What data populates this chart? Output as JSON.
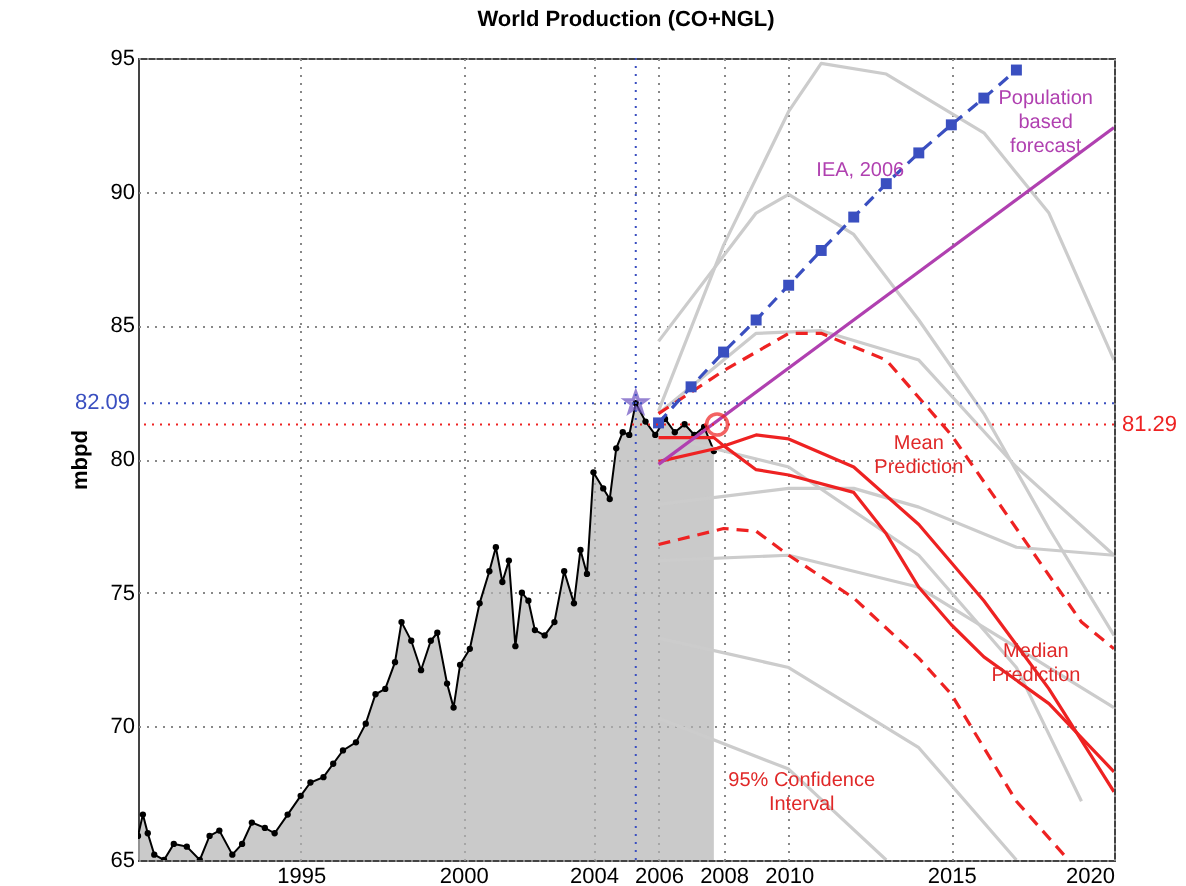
{
  "chart_data": {
    "type": "line",
    "title": "World Production (CO+NGL)",
    "ylabel": "mbpd",
    "xlim": [
      1990,
      2020
    ],
    "xticks": [
      1995,
      2000,
      2004,
      2006,
      2008,
      2010,
      2015,
      2020
    ],
    "ylim": [
      65,
      95
    ],
    "yticks": [
      65,
      70,
      75,
      80,
      85,
      90,
      95
    ],
    "grid": true,
    "series": [
      {
        "type": "area",
        "color": "#b3b3b3",
        "marker": "circle",
        "x": [
          1990.0,
          1990.15,
          1990.3,
          1990.5,
          1990.8,
          1991.1,
          1991.5,
          1991.9,
          1992.2,
          1992.5,
          1992.9,
          1993.2,
          1993.5,
          1993.9,
          1994.2,
          1994.6,
          1995.0,
          1995.3,
          1995.7,
          1996.0,
          1996.3,
          1996.7,
          1997.0,
          1997.3,
          1997.6,
          1997.9,
          1998.1,
          1998.4,
          1998.7,
          1999.0,
          1999.2,
          1999.5,
          1999.7,
          1999.9,
          2000.2,
          2000.5,
          2000.8,
          2001.0,
          2001.2,
          2001.4,
          2001.6,
          2001.8,
          2002.0,
          2002.2,
          2002.5,
          2002.8,
          2003.1,
          2003.4,
          2003.6,
          2003.8,
          2004.0,
          2004.3,
          2004.5,
          2004.7,
          2004.9,
          2005.1,
          2005.3,
          2005.6,
          2005.9,
          2006.2,
          2006.5,
          2006.8,
          2007.1,
          2007.4,
          2007.7
        ],
        "values": [
          65.9,
          66.7,
          66.0,
          65.2,
          65.0,
          65.6,
          65.5,
          65.0,
          65.9,
          66.1,
          65.2,
          65.6,
          66.4,
          66.2,
          66.0,
          66.7,
          67.4,
          67.9,
          68.1,
          68.6,
          69.1,
          69.4,
          70.1,
          71.2,
          71.4,
          72.4,
          73.9,
          73.2,
          72.1,
          73.2,
          73.5,
          71.6,
          70.7,
          72.3,
          72.9,
          74.6,
          75.8,
          76.7,
          75.4,
          76.2,
          73.0,
          75.0,
          74.7,
          73.6,
          73.4,
          73.9,
          75.8,
          74.6,
          76.6,
          75.7,
          79.5,
          78.9,
          78.5,
          80.4,
          81.0,
          80.9,
          82.09,
          81.4,
          80.9,
          81.5,
          81.0,
          81.3,
          80.9,
          81.2,
          80.3
        ]
      },
      {
        "color": "#cccccc",
        "x": [
          2006,
          2008,
          2010,
          2011,
          2013,
          2016,
          2018,
          2020
        ],
        "values": [
          81.8,
          88.0,
          93.0,
          94.8,
          94.4,
          92.2,
          89.2,
          83.7
        ]
      },
      {
        "color": "#cccccc",
        "x": [
          2006,
          2009,
          2010,
          2012,
          2014,
          2016,
          2018,
          2020
        ],
        "values": [
          84.4,
          89.2,
          89.9,
          88.4,
          85.2,
          81.7,
          77.4,
          73.4
        ]
      },
      {
        "color": "#cccccc",
        "x": [
          2006,
          2009,
          2011,
          2014,
          2017,
          2020
        ],
        "values": [
          81.7,
          84.7,
          84.8,
          83.7,
          79.7,
          76.4
        ]
      },
      {
        "color": "#cccccc",
        "x": [
          2006,
          2010,
          2012,
          2014,
          2017,
          2020
        ],
        "values": [
          78.3,
          78.9,
          78.9,
          78.2,
          76.7,
          76.4
        ]
      },
      {
        "color": "#cccccc",
        "x": [
          2006,
          2010,
          2014,
          2018,
          2020
        ],
        "values": [
          76.2,
          76.4,
          75.2,
          72.2,
          70.7
        ]
      },
      {
        "color": "#cccccc",
        "x": [
          2006,
          2010,
          2014,
          2017
        ],
        "values": [
          73.3,
          72.2,
          69.2,
          65.0
        ]
      },
      {
        "color": "#cccccc",
        "x": [
          2006,
          2010,
          2013
        ],
        "values": [
          70.3,
          68.4,
          65.0
        ]
      },
      {
        "color": "#cccccc",
        "x": [
          2006,
          2010,
          2014,
          2017,
          2019
        ],
        "values": [
          80.9,
          79.7,
          76.4,
          72.2,
          67.2
        ]
      },
      {
        "color": "#ee2222",
        "line_style": "dashed",
        "x": [
          2006,
          2008,
          2010,
          2011,
          2013,
          2015,
          2017,
          2019,
          2020
        ],
        "values": [
          81.7,
          83.3,
          84.7,
          84.7,
          83.7,
          80.9,
          77.4,
          73.9,
          72.9
        ]
      },
      {
        "color": "#ee2222",
        "line_style": "dashed",
        "x": [
          2006,
          2008,
          2009,
          2010,
          2012,
          2014,
          2015,
          2017,
          2018.6
        ],
        "values": [
          76.8,
          77.4,
          77.3,
          76.4,
          74.8,
          72.55,
          71.2,
          67.2,
          65.0
        ]
      },
      {
        "color": "#ee2222",
        "x": [
          2006,
          2007.8,
          2009,
          2010,
          2012,
          2014,
          2016,
          2018,
          2020
        ],
        "values": [
          79.9,
          80.4,
          80.9,
          80.75,
          79.7,
          77.55,
          74.7,
          71.4,
          67.55
        ]
      },
      {
        "color": "#ee2222",
        "x": [
          2006,
          2007.7,
          2008,
          2009,
          2010,
          2012,
          2013,
          2014,
          2015,
          2016,
          2018,
          2020
        ],
        "values": [
          80.8,
          80.8,
          80.5,
          79.6,
          79.4,
          78.75,
          77.2,
          75.2,
          73.8,
          72.6,
          70.85,
          68.3
        ]
      },
      {
        "color": "#b040b0",
        "x": [
          2006,
          2020
        ],
        "values": [
          79.8,
          92.4
        ]
      },
      {
        "color": "#3a4fc0",
        "marker": "square",
        "line_style": "dashed",
        "x": [
          2006,
          2007,
          2008,
          2009,
          2010,
          2011,
          2012,
          2013,
          2014,
          2015,
          2016,
          2017
        ],
        "values": [
          81.35,
          82.7,
          84.0,
          85.2,
          86.5,
          87.8,
          89.05,
          90.3,
          91.45,
          92.5,
          93.5,
          94.55
        ]
      },
      {
        "type": "scatter",
        "marker": "star",
        "color": "#6a4fc0",
        "x": [
          2005.3
        ],
        "values": [
          82.09
        ]
      },
      {
        "type": "scatter",
        "marker": "circle",
        "color": "#ee2222",
        "x": [
          2007.8
        ],
        "values": [
          81.29
        ]
      }
    ],
    "ref_lines": [
      {
        "axis": "y",
        "value": 82.09,
        "label": "82.09",
        "color": "#3a4fc0",
        "line_style": "dotted"
      },
      {
        "axis": "y",
        "value": 81.29,
        "label": "81.29",
        "color": "#ee2222",
        "line_style": "dotted"
      },
      {
        "axis": "x",
        "value": 2005.3,
        "label": null,
        "color": "#3a4fc0",
        "line_style": "dotted"
      }
    ],
    "annotations": [
      "IEA, 2006",
      "Population\nbased\nforecast",
      "Mean\nPrediction",
      "Median\nPrediction",
      "95% Confidence\nInterval"
    ]
  }
}
